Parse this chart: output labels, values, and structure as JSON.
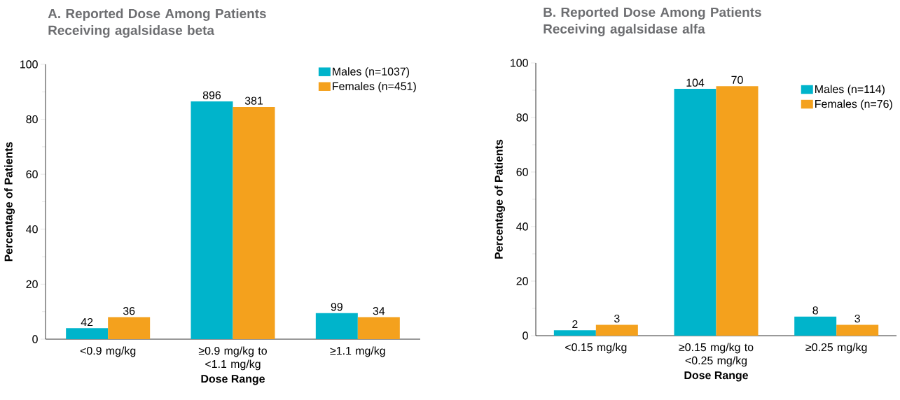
{
  "chart_data": [
    {
      "type": "bar",
      "title": "A. Reported Dose Among Patients Receiving agalsidase beta",
      "xlabel": "Dose Range",
      "ylabel": "Percentage of Patients",
      "categories": [
        "<0.9 mg/kg",
        "≥0.9 mg/kg to <1.1 mg/kg",
        "≥1.1 mg/kg"
      ],
      "series": [
        {
          "name": "Males (n=1037)",
          "color": "#00b4cb",
          "values": [
            4,
            86.5,
            9.5
          ]
        },
        {
          "name": "Females (n=451)",
          "color": "#f4a11d",
          "values": [
            8,
            84.5,
            8
          ]
        }
      ],
      "annotations": [
        {
          "text": "42",
          "x": "<0.9 mg/kg",
          "y": 4
        },
        {
          "text": "896",
          "x": "≥0.9 mg/kg to <1.1 mg/kg",
          "y": 86.5
        },
        {
          "text": "99",
          "x": "≥1.1 mg/kg",
          "y": 9.5
        },
        {
          "text": "36",
          "x": "<0.9 mg/kg",
          "y": 8
        },
        {
          "text": "381",
          "x": "≥0.9 mg/kg to <1.1 mg/kg",
          "y": 84.5
        },
        {
          "text": "34",
          "x": "≥1.1 mg/kg",
          "y": 8
        }
      ],
      "ylim": [
        0,
        100
      ],
      "yticks": [
        0,
        20,
        40,
        60,
        80,
        100
      ],
      "grid": false,
      "legend": "top right"
    },
    {
      "type": "bar",
      "title": "B. Reported Dose Among Patients Receiving agalsidase alfa",
      "xlabel": "Dose Range",
      "ylabel": "Percentage of Patients",
      "categories": [
        "<0.15 mg/kg",
        "≥0.15 mg/kg to <0.25 mg/kg",
        "≥0.25 mg/kg"
      ],
      "series": [
        {
          "name": "Males (n=114)",
          "color": "#00b4cb",
          "values": [
            2,
            90.5,
            7
          ]
        },
        {
          "name": "Females (n=76)",
          "color": "#f4a11d",
          "values": [
            4,
            91.5,
            4
          ]
        }
      ],
      "annotations": [
        {
          "text": "2",
          "x": "<0.15 mg/kg",
          "y": 2
        },
        {
          "text": "104",
          "x": "≥0.15 mg/kg to <0.25 mg/kg",
          "y": 90.5
        },
        {
          "text": "8",
          "x": "≥0.25 mg/kg",
          "y": 7
        },
        {
          "text": "3",
          "x": "<0.15 mg/kg",
          "y": 4
        },
        {
          "text": "70",
          "x": "≥0.15 mg/kg to <0.25 mg/kg",
          "y": 91.5
        },
        {
          "text": "3",
          "x": "≥0.25 mg/kg",
          "y": 4
        }
      ],
      "ylim": [
        0,
        100
      ],
      "yticks": [
        0,
        20,
        40,
        60,
        80,
        100
      ],
      "grid": false,
      "legend": "top right"
    }
  ]
}
